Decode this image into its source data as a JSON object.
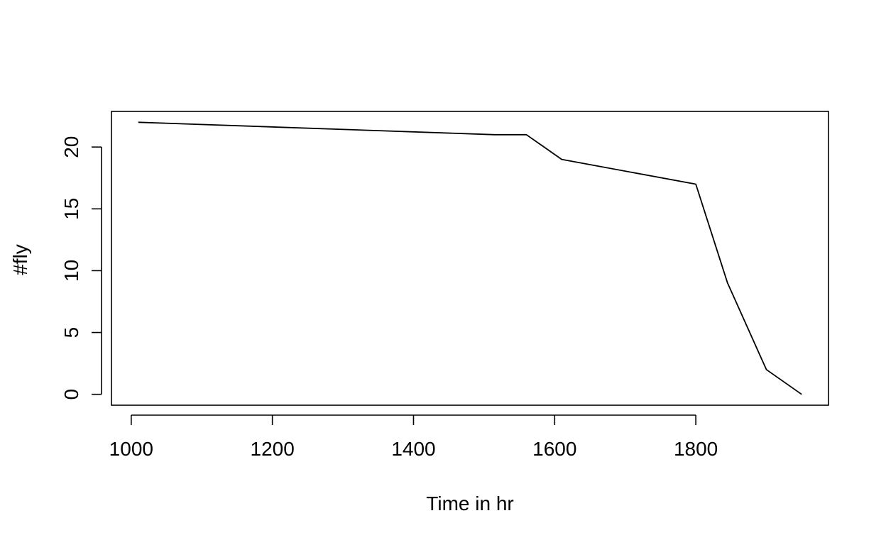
{
  "chart_data": {
    "type": "line",
    "title": "",
    "xlabel": "Time in hr",
    "ylabel": "#fly",
    "xlim": [
      972,
      1988
    ],
    "ylim": [
      -0.88,
      22.88
    ],
    "xticks": [
      1000,
      1200,
      1400,
      1600,
      1800
    ],
    "yticks": [
      0,
      5,
      10,
      15,
      20
    ],
    "grid": false,
    "legend": "none",
    "line_color": "#000000",
    "series": [
      {
        "x": [
          1010,
          1515,
          1560,
          1610,
          1800,
          1845,
          1900,
          1950
        ],
        "y": [
          22,
          21,
          21,
          19,
          17,
          9,
          2,
          0
        ]
      }
    ]
  }
}
